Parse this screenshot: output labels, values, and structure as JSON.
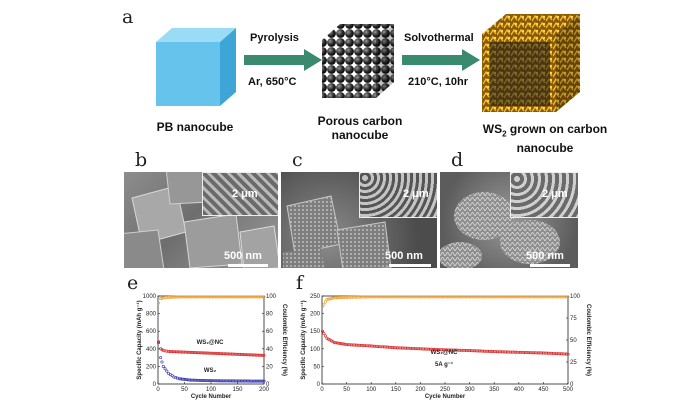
{
  "panel_a": {
    "letter": "a",
    "step1_label": "Pyrolysis",
    "step1_condition": "Ar, 650°C",
    "step2_label": "Solvothermal",
    "step2_condition": "210°C, 10hr",
    "caption1": "PB nanocube",
    "caption2_line1": "Porous carbon",
    "caption2_line2": "nanocube",
    "caption3_prefix": "WS",
    "caption3_sub": "2",
    "caption3_rest": " grown on carbon",
    "caption3_line2": "nanocube",
    "colors": {
      "cube_blue": "#6cc7ec",
      "arrow_green": "#3a8a6e",
      "carbon": "#1e1e1e",
      "ws2": "#d99a14"
    }
  },
  "panel_b": {
    "letter": "b",
    "inset_scale": "2 μm",
    "main_scale": "500 nm"
  },
  "panel_c": {
    "letter": "c",
    "inset_scale": "2 μm",
    "main_scale": "500 nm"
  },
  "panel_d": {
    "letter": "d",
    "inset_scale": "2 μm",
    "main_scale": "500 nm"
  },
  "panel_e": {
    "letter": "e"
  },
  "panel_f": {
    "letter": "f"
  },
  "chart_data": [
    {
      "panel": "e",
      "type": "scatter",
      "xlabel": "Cycle Number",
      "ylabel": "Specific Capacity (mAh g⁻¹)",
      "y2label": "Coulombic Efficiency (%)",
      "xlim": [
        0,
        200
      ],
      "ylim": [
        0,
        1000
      ],
      "y2lim": [
        0,
        100
      ],
      "xticks": [
        0,
        50,
        100,
        150,
        200
      ],
      "yticks": [
        0,
        200,
        400,
        600,
        800,
        1000
      ],
      "y2ticks": [
        0,
        20,
        40,
        60,
        80,
        100
      ],
      "annotations": [
        "WS₂@NC",
        "WS₂"
      ],
      "series": [
        {
          "name": "WS₂@NC",
          "color": "#d62a2a",
          "axis": "left",
          "x": [
            1,
            5,
            10,
            20,
            40,
            60,
            80,
            100,
            120,
            140,
            160,
            180,
            200
          ],
          "y": [
            480,
            400,
            380,
            370,
            365,
            360,
            355,
            350,
            345,
            340,
            335,
            330,
            325
          ]
        },
        {
          "name": "WS₂",
          "color": "#3535b0",
          "axis": "left",
          "x": [
            1,
            5,
            10,
            20,
            30,
            40,
            60,
            80,
            100,
            120,
            140,
            160,
            180,
            200
          ],
          "y": [
            470,
            300,
            200,
            120,
            80,
            60,
            45,
            40,
            38,
            36,
            35,
            34,
            33,
            32
          ]
        },
        {
          "name": "",
          "color": "#f0a030",
          "axis": "right",
          "x": [
            1,
            5,
            10,
            20,
            40,
            60,
            80,
            100,
            120,
            140,
            160,
            180,
            200
          ],
          "y": [
            92,
            97,
            98,
            98.5,
            99,
            99,
            99,
            99,
            99,
            99,
            99,
            99,
            99
          ]
        }
      ]
    },
    {
      "panel": "f",
      "type": "scatter",
      "xlabel": "Cycle Number",
      "ylabel": "Specific Capacity (mAh g⁻¹)",
      "y2label": "Coulombic Efficiency (%)",
      "xlim": [
        0,
        500
      ],
      "ylim": [
        0,
        250
      ],
      "y2lim": [
        0,
        100
      ],
      "xticks": [
        0,
        50,
        100,
        150,
        200,
        250,
        300,
        350,
        400,
        450,
        500
      ],
      "yticks": [
        0,
        50,
        100,
        150,
        200,
        250
      ],
      "y2ticks": [
        0,
        25,
        50,
        75,
        100
      ],
      "annotations": [
        "WS₂@NC",
        "5A g⁻¹"
      ],
      "series": [
        {
          "name": "WS₂@NC",
          "color": "#d62a2a",
          "axis": "left",
          "x": [
            1,
            10,
            25,
            50,
            100,
            150,
            200,
            250,
            300,
            350,
            400,
            450,
            500
          ],
          "y": [
            150,
            130,
            118,
            112,
            108,
            103,
            100,
            97,
            95,
            92,
            90,
            88,
            85
          ]
        },
        {
          "name": "",
          "color": "#f0a030",
          "axis": "right",
          "x": [
            1,
            10,
            25,
            50,
            100,
            150,
            200,
            250,
            300,
            350,
            400,
            450,
            500
          ],
          "y": [
            88,
            96,
            98,
            98.5,
            99,
            99,
            99,
            99,
            99,
            99,
            99,
            99,
            99
          ]
        }
      ]
    }
  ]
}
